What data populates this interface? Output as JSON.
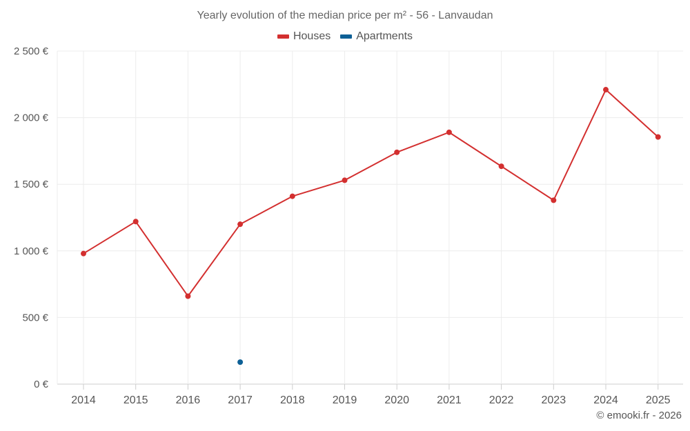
{
  "chart_data": {
    "type": "line",
    "title": "Yearly evolution of the median price per m² - 56 - Lanvaudan",
    "categories": [
      "2014",
      "2015",
      "2016",
      "2017",
      "2018",
      "2019",
      "2020",
      "2021",
      "2022",
      "2023",
      "2024",
      "2025"
    ],
    "series": [
      {
        "name": "Houses",
        "color": "#d32f2f",
        "values": [
          980,
          1220,
          660,
          1200,
          1410,
          1530,
          1740,
          1890,
          1635,
          1380,
          2210,
          1855
        ]
      },
      {
        "name": "Apartments",
        "color": "#0d6096",
        "values": [
          null,
          null,
          null,
          165,
          null,
          null,
          null,
          null,
          null,
          null,
          null,
          null
        ]
      }
    ],
    "yticks": [
      "0 €",
      "500 €",
      "1 000 €",
      "1 500 €",
      "2 000 €",
      "2 500 €"
    ],
    "ylim": [
      0,
      2500
    ],
    "xlabel": "",
    "ylabel": "",
    "grid": true,
    "legend_position": "top-center"
  },
  "footer": {
    "copyright": "© emooki.fr - 2026"
  }
}
